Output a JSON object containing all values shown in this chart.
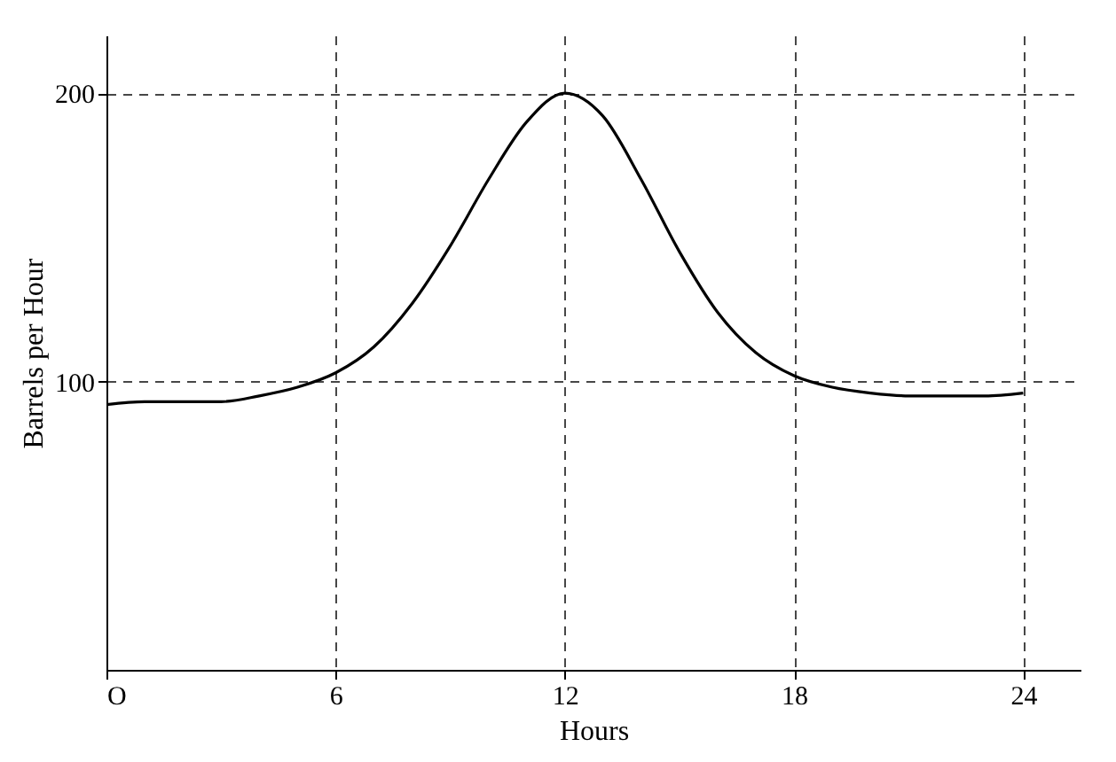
{
  "chart_data": {
    "type": "line",
    "xlabel": "Hours",
    "ylabel": "Barrels per Hour",
    "x": [
      0,
      1,
      2,
      3,
      4,
      5,
      6,
      7,
      8,
      9,
      10,
      11,
      12,
      13,
      14,
      15,
      16,
      17,
      18,
      19,
      20,
      21,
      22,
      23,
      24
    ],
    "series": [
      {
        "color": "#000000",
        "values": [
          92,
          93,
          93,
          93,
          95,
          98,
          103,
          112,
          127,
          147,
          170,
          190,
          200,
          192,
          170,
          145,
          124,
          110,
          102,
          98,
          96,
          95,
          95,
          95,
          96
        ]
      }
    ],
    "xlim": [
      0,
      25.5
    ],
    "ylim": [
      0,
      220
    ],
    "xticks": [
      {
        "value": 0,
        "label": "O"
      },
      6,
      12,
      18,
      24
    ],
    "yticks": [
      100,
      200
    ],
    "grid": true,
    "line_style": "solid",
    "marker": "none"
  }
}
